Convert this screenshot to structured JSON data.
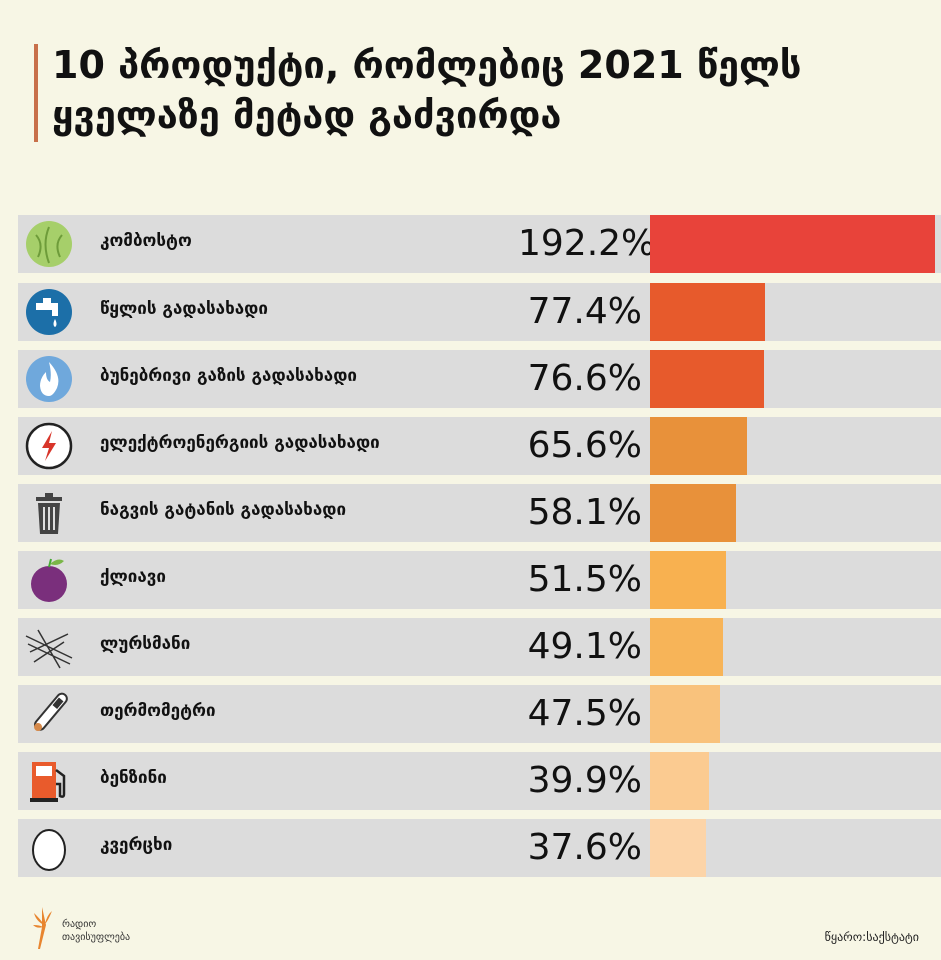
{
  "title": "10 პროდუქტი, რომლებიც 2021 წელს ყველაზე მეტად გაძვირდა",
  "chart_data": {
    "type": "bar",
    "orientation": "horizontal",
    "title": "10 პროდუქტი, რომლებიც 2021 წელს ყველაზე მეტად გაძვირდა",
    "categories": [
      "კომბოსტო",
      "წყლის გადასახადი",
      "ბუნებრივი გაზის გადასახადი",
      "ელექტროენერგიის გადასახადი",
      "ნაგვის გატანის გადასახადი",
      "ქლიავი",
      "ლურსმანი",
      "თერმომეტრი",
      "ბენზინი",
      "კვერცხი"
    ],
    "values": [
      192.2,
      77.4,
      76.6,
      65.6,
      58.1,
      51.5,
      49.1,
      47.5,
      39.9,
      37.6
    ],
    "labels": [
      "192.2%",
      "77.4%",
      "76.6%",
      "65.6%",
      "58.1%",
      "51.5%",
      "49.1%",
      "47.5%",
      "39.9%",
      "37.6%"
    ],
    "icons": [
      "cabbage-icon",
      "water-tap-icon",
      "gas-flame-icon",
      "electricity-icon",
      "trash-can-icon",
      "plum-icon",
      "nails-icon",
      "thermometer-icon",
      "fuel-pump-icon",
      "egg-icon"
    ],
    "colors": [
      "#e8433a",
      "#e75a2c",
      "#e75a2c",
      "#e8913a",
      "#e8913a",
      "#f8b150",
      "#f7b458",
      "#f9c27c",
      "#fbcb91",
      "#fcd4a8"
    ],
    "xlim": [
      0,
      192.2
    ],
    "xlabel": "",
    "ylabel": ""
  },
  "footer": {
    "logo_line1": "რადიო",
    "logo_line2": "თავისუფლება",
    "source": "წყარო:საქსტატი"
  }
}
